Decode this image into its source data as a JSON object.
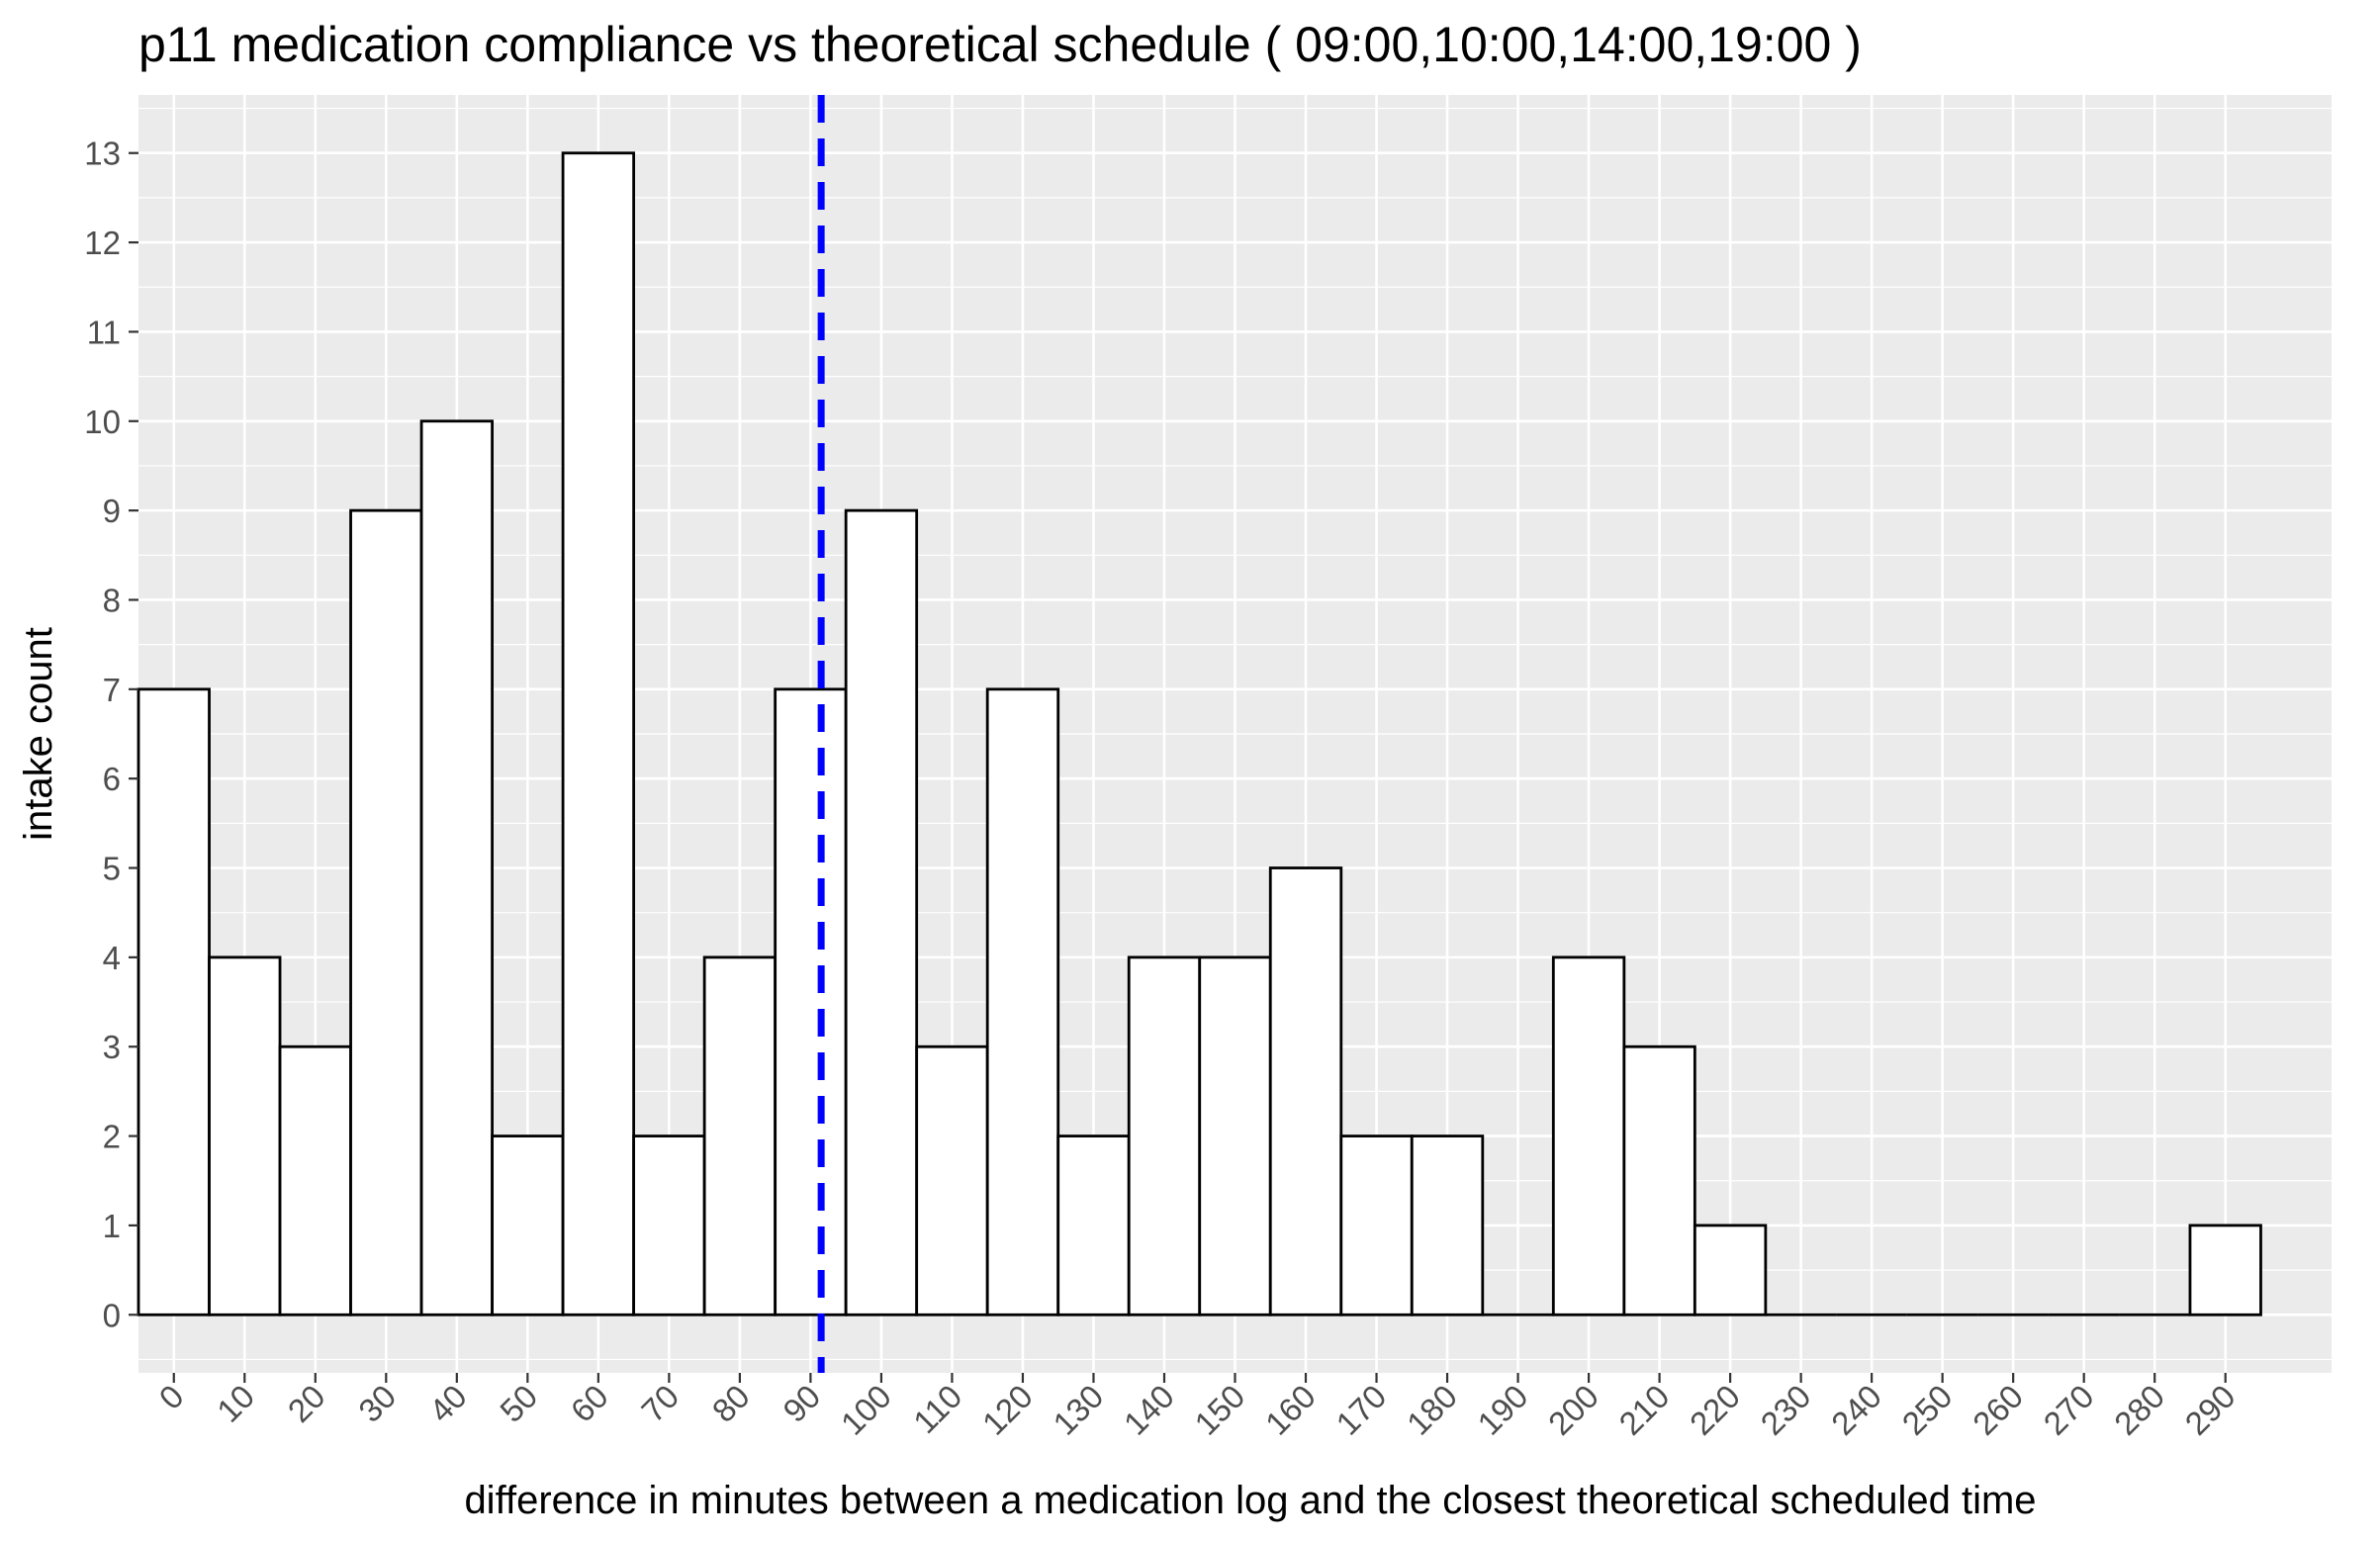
{
  "chart_data": {
    "type": "bar",
    "title": "p11  medication compliance vs theoretical schedule ( 09:00,10:00,14:00,19:00 )",
    "xlabel": "difference in minutes between a medication log and the closest theoretical scheduled time",
    "ylabel": "intake count",
    "bin_width": 10,
    "bins": [
      {
        "x": 0,
        "count": 7
      },
      {
        "x": 10,
        "count": 4
      },
      {
        "x": 20,
        "count": 3
      },
      {
        "x": 30,
        "count": 9
      },
      {
        "x": 40,
        "count": 10
      },
      {
        "x": 50,
        "count": 2
      },
      {
        "x": 60,
        "count": 13
      },
      {
        "x": 70,
        "count": 2
      },
      {
        "x": 80,
        "count": 4
      },
      {
        "x": 90,
        "count": 7
      },
      {
        "x": 100,
        "count": 9
      },
      {
        "x": 110,
        "count": 3
      },
      {
        "x": 120,
        "count": 7
      },
      {
        "x": 130,
        "count": 2
      },
      {
        "x": 140,
        "count": 4
      },
      {
        "x": 150,
        "count": 4
      },
      {
        "x": 160,
        "count": 5
      },
      {
        "x": 170,
        "count": 2
      },
      {
        "x": 180,
        "count": 2
      },
      {
        "x": 190,
        "count": 0
      },
      {
        "x": 200,
        "count": 4
      },
      {
        "x": 210,
        "count": 3
      },
      {
        "x": 220,
        "count": 1
      },
      {
        "x": 230,
        "count": 0
      },
      {
        "x": 240,
        "count": 0
      },
      {
        "x": 250,
        "count": 0
      },
      {
        "x": 260,
        "count": 0
      },
      {
        "x": 270,
        "count": 0
      },
      {
        "x": 280,
        "count": 0
      },
      {
        "x": 290,
        "count": 1
      }
    ],
    "reference_line": {
      "x": 91.5,
      "color": "#0000ff",
      "style": "dashed"
    },
    "x_ticks": [
      "0",
      "10",
      "20",
      "30",
      "40",
      "50",
      "60",
      "70",
      "80",
      "90",
      "100",
      "110",
      "120",
      "130",
      "140",
      "150",
      "160",
      "170",
      "180",
      "190",
      "200",
      "210",
      "220",
      "230",
      "240",
      "250",
      "260",
      "270",
      "280",
      "290"
    ],
    "y_ticks": [
      "0",
      "1",
      "2",
      "3",
      "4",
      "5",
      "6",
      "7",
      "8",
      "9",
      "10",
      "11",
      "12",
      "13"
    ],
    "xlim": [
      -5,
      305
    ],
    "ylim": [
      -0.65,
      13.65
    ],
    "grid": true,
    "colors": {
      "panel": "#ebebeb",
      "grid": "#ffffff",
      "bar_fill": "#ffffff",
      "bar_stroke": "#000000"
    }
  }
}
